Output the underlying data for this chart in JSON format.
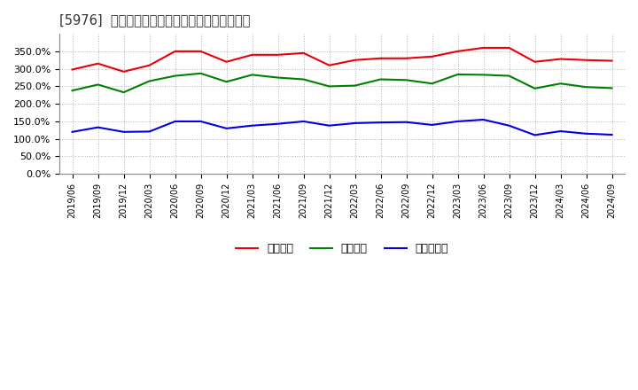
{
  "title": "[5976]  流動比率、当座比率、現預金比率の推移",
  "x_labels": [
    "2019/06",
    "2019/09",
    "2019/12",
    "2020/03",
    "2020/06",
    "2020/09",
    "2020/12",
    "2021/03",
    "2021/06",
    "2021/09",
    "2021/12",
    "2022/03",
    "2022/06",
    "2022/09",
    "2022/12",
    "2023/03",
    "2023/06",
    "2023/09",
    "2023/12",
    "2024/03",
    "2024/06",
    "2024/09"
  ],
  "ryudo": [
    298,
    315,
    292,
    310,
    350,
    350,
    320,
    340,
    340,
    345,
    310,
    325,
    330,
    330,
    335,
    350,
    360,
    360,
    320,
    328,
    325,
    323
  ],
  "toza": [
    238,
    255,
    233,
    265,
    280,
    287,
    263,
    283,
    275,
    270,
    250,
    252,
    270,
    268,
    258,
    284,
    283,
    280,
    244,
    258,
    248,
    245
  ],
  "genyo": [
    120,
    133,
    120,
    121,
    150,
    150,
    130,
    138,
    143,
    150,
    138,
    145,
    147,
    148,
    140,
    150,
    155,
    138,
    111,
    122,
    115,
    112
  ],
  "ryudo_color": "#e8000a",
  "toza_color": "#008000",
  "genyo_color": "#0000e8",
  "legend_labels": [
    "流動比率",
    "当座比率",
    "現預金比率"
  ],
  "ylim": [
    0,
    400
  ],
  "yticks": [
    0,
    50,
    100,
    150,
    200,
    250,
    300,
    350
  ],
  "bg_color": "#ffffff",
  "plot_bg_color": "#ffffff",
  "grid_color": "#aaaaaa",
  "title_color": "#333333",
  "title_bracket_color": "#444444"
}
